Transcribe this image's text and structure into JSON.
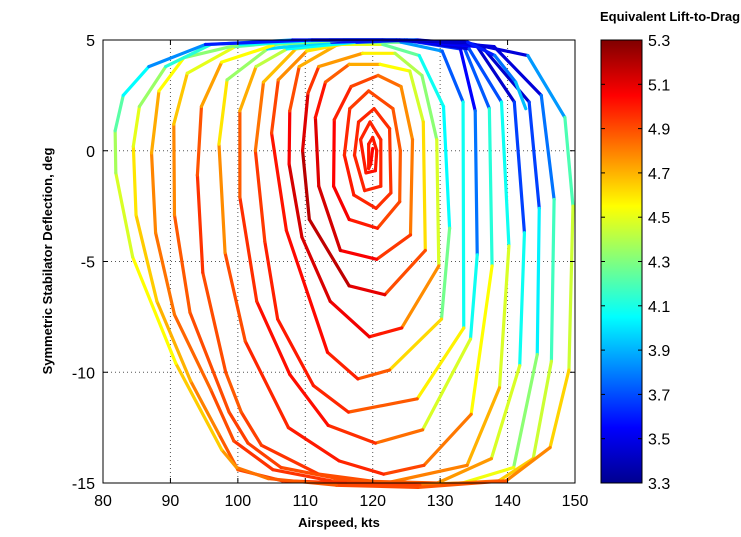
{
  "chart_data": {
    "type": "line",
    "xlabel": "Airspeed, kts",
    "ylabel": "Symmetric Stabilator Deflection, deg",
    "colorbar_title": "Equivalent Lift-to-Drag Ratio",
    "xlim": [
      80,
      150
    ],
    "ylim": [
      -15,
      5
    ],
    "xticks": [
      80,
      90,
      100,
      110,
      120,
      130,
      140,
      150
    ],
    "yticks": [
      -15,
      -10,
      -5,
      0,
      5
    ],
    "xtick_labels": [
      "80",
      "90",
      "100",
      "110",
      "120",
      "130",
      "140",
      "150"
    ],
    "ytick_labels": [
      "-15",
      "-10",
      "-5",
      "0",
      "5"
    ],
    "grid": true,
    "colormap": "jet",
    "colorbar_range": [
      3.3,
      5.3
    ],
    "colorbar_ticks": [
      "5.3",
      "5.1",
      "4.9",
      "4.7",
      "4.5",
      "4.3",
      "4.1",
      "3.9",
      "3.7",
      "3.5",
      "3.3"
    ],
    "series": [
      {
        "points": [
          [
            120.0,
            0.1
          ],
          [
            119.7,
            -0.6
          ],
          [
            119.4,
            -0.8
          ],
          [
            119.4,
            0.3
          ],
          [
            120.0,
            0.6
          ],
          [
            120.6,
            0.0
          ],
          [
            120.4,
            -0.9
          ],
          [
            119.0,
            -1.0
          ],
          [
            118.2,
            0.5
          ],
          [
            119.6,
            1.3
          ],
          [
            121.2,
            0.5
          ],
          [
            121.2,
            -1.6
          ],
          [
            118.8,
            -1.8
          ],
          [
            117.3,
            -0.2
          ],
          [
            117.9,
            1.3
          ],
          [
            120.2,
            1.9
          ],
          [
            122.5,
            1.0
          ],
          [
            122.7,
            -1.9
          ],
          [
            120.5,
            -2.6
          ],
          [
            117.2,
            -2.0
          ],
          [
            115.8,
            -0.2
          ],
          [
            116.6,
            1.9
          ],
          [
            119.4,
            2.7
          ],
          [
            123.0,
            1.9
          ],
          [
            124.1,
            0.0
          ],
          [
            124.0,
            -2.3
          ],
          [
            120.7,
            -3.5
          ],
          [
            116.5,
            -3.1
          ],
          [
            114.2,
            -1.6
          ],
          [
            114.3,
            1.4
          ],
          [
            116.8,
            2.9
          ],
          [
            120.8,
            3.4
          ],
          [
            124.2,
            2.9
          ],
          [
            125.9,
            0.5
          ],
          [
            125.6,
            -3.8
          ],
          [
            120.6,
            -4.9
          ],
          [
            115.2,
            -4.5
          ],
          [
            112.0,
            -1.6
          ],
          [
            111.5,
            1.5
          ],
          [
            113.0,
            3.1
          ],
          [
            116.5,
            3.9
          ],
          [
            121.1,
            3.9
          ],
          [
            125.5,
            3.6
          ],
          [
            127.5,
            1.3
          ],
          [
            127.8,
            -4.5
          ],
          [
            121.8,
            -6.5
          ],
          [
            116.5,
            -6.1
          ],
          [
            110.6,
            -3.1
          ],
          [
            109.6,
            0.0
          ],
          [
            110.4,
            2.6
          ],
          [
            112.0,
            3.8
          ],
          [
            118.5,
            4.4
          ],
          [
            123.3,
            4.4
          ],
          [
            127.3,
            3.4
          ],
          [
            129.5,
            0.5
          ],
          [
            129.8,
            -5.2
          ],
          [
            124.3,
            -8.0
          ],
          [
            119.5,
            -8.4
          ],
          [
            113.7,
            -6.8
          ],
          [
            109.5,
            -3.9
          ],
          [
            107.6,
            -0.6
          ],
          [
            107.7,
            1.8
          ],
          [
            109.1,
            3.8
          ],
          [
            114.8,
            4.8
          ],
          [
            121.5,
            4.8
          ],
          [
            126.9,
            4.3
          ],
          [
            130.5,
            2.0
          ],
          [
            131.4,
            -3.5
          ],
          [
            130.2,
            -7.6
          ],
          [
            122.5,
            -9.9
          ],
          [
            117.8,
            -10.3
          ],
          [
            113.3,
            -9.1
          ],
          [
            107.2,
            -3.6
          ],
          [
            105.0,
            0.8
          ],
          [
            106.0,
            3.2
          ],
          [
            110.2,
            4.5
          ],
          [
            117.1,
            4.9
          ],
          [
            124.2,
            4.9
          ],
          [
            130.3,
            4.5
          ],
          [
            133.4,
            2.2
          ],
          [
            133.5,
            -8.0
          ],
          [
            126.6,
            -11.2
          ],
          [
            116.4,
            -11.8
          ],
          [
            111.2,
            -10.6
          ],
          [
            105.9,
            -7.6
          ],
          [
            104.0,
            -4.1
          ],
          [
            102.6,
            0.0
          ],
          [
            103.8,
            3.1
          ],
          [
            108.6,
            4.6
          ],
          [
            117.6,
            4.9
          ],
          [
            124.7,
            5.0
          ],
          [
            133.0,
            4.6
          ],
          [
            135.2,
            1.8
          ],
          [
            135.5,
            -4.7
          ],
          [
            134.5,
            -8.5
          ],
          [
            127.4,
            -12.6
          ],
          [
            120.4,
            -13.2
          ],
          [
            113.4,
            -12.4
          ],
          [
            107.7,
            -10.1
          ],
          [
            102.8,
            -6.8
          ],
          [
            100.3,
            -2.1
          ],
          [
            100.3,
            1.8
          ],
          [
            102.7,
            3.8
          ],
          [
            107.3,
            4.6
          ],
          [
            117.6,
            4.9
          ],
          [
            126.5,
            5.0
          ],
          [
            133.5,
            4.7
          ],
          [
            137.3,
            1.9
          ],
          [
            137.7,
            -5.2
          ],
          [
            134.6,
            -11.9
          ],
          [
            127.6,
            -14.2
          ],
          [
            121.6,
            -14.6
          ],
          [
            115.0,
            -14.0
          ],
          [
            107.5,
            -12.5
          ],
          [
            101.1,
            -8.6
          ],
          [
            98.1,
            -4.6
          ],
          [
            97.2,
            0.3
          ],
          [
            98.4,
            3.2
          ],
          [
            104.4,
            4.6
          ],
          [
            113.9,
            4.9
          ],
          [
            125.1,
            5.0
          ],
          [
            134.3,
            4.6
          ],
          [
            139.1,
            2.2
          ],
          [
            140.2,
            -4.3
          ],
          [
            138.8,
            -10.7
          ],
          [
            134.0,
            -14.2
          ],
          [
            122.0,
            -15.0
          ],
          [
            112.0,
            -14.6
          ],
          [
            103.5,
            -13.3
          ],
          [
            100.5,
            -11.8
          ],
          [
            98.2,
            -10.0
          ],
          [
            94.8,
            -5.5
          ],
          [
            94.0,
            -1.1
          ],
          [
            94.6,
            2.0
          ],
          [
            97.6,
            4.0
          ],
          [
            105.6,
            4.8
          ],
          [
            115.7,
            5.0
          ],
          [
            126.3,
            5.0
          ],
          [
            135.5,
            4.7
          ],
          [
            141.0,
            2.2
          ],
          [
            142.5,
            -3.7
          ],
          [
            141.8,
            -9.7
          ],
          [
            137.6,
            -13.9
          ],
          [
            129.6,
            -15.0
          ],
          [
            116.5,
            -14.9
          ],
          [
            106.4,
            -14.3
          ],
          [
            101.5,
            -13.2
          ],
          [
            98.7,
            -11.8
          ],
          [
            92.9,
            -7.3
          ],
          [
            90.6,
            -2.9
          ],
          [
            90.5,
            1.2
          ],
          [
            92.5,
            3.5
          ],
          [
            99.6,
            4.7
          ],
          [
            110.5,
            5.0
          ],
          [
            123.5,
            5.0
          ],
          [
            136.2,
            4.7
          ],
          [
            143.2,
            2.2
          ],
          [
            144.7,
            -2.6
          ],
          [
            144.4,
            -9.2
          ],
          [
            140.9,
            -14.3
          ],
          [
            133.3,
            -15.0
          ],
          [
            122.8,
            -15.1
          ],
          [
            113.8,
            -14.9
          ],
          [
            105.2,
            -14.4
          ],
          [
            99.4,
            -13.1
          ],
          [
            96.0,
            -10.8
          ],
          [
            90.6,
            -7.4
          ],
          [
            87.8,
            -3.7
          ],
          [
            87.2,
            -0.1
          ],
          [
            88.3,
            2.7
          ],
          [
            92.0,
            4.2
          ],
          [
            100.3,
            4.8
          ],
          [
            113.6,
            5.0
          ],
          [
            126.7,
            5.0
          ],
          [
            138.0,
            4.7
          ],
          [
            145.0,
            2.5
          ],
          [
            146.9,
            -2.2
          ],
          [
            146.5,
            -9.5
          ],
          [
            143.8,
            -13.9
          ],
          [
            138.7,
            -14.9
          ],
          [
            127.0,
            -15.1
          ],
          [
            116.0,
            -15.0
          ],
          [
            106.6,
            -14.9
          ],
          [
            100.0,
            -14.4
          ],
          [
            97.2,
            -12.8
          ],
          [
            93.0,
            -10.4
          ],
          [
            88.0,
            -6.8
          ],
          [
            84.9,
            -2.9
          ],
          [
            84.5,
            0.2
          ],
          [
            85.4,
            2.0
          ],
          [
            89.3,
            3.8
          ],
          [
            96.0,
            4.8
          ],
          [
            108.1,
            5.0
          ],
          [
            121.4,
            5.0
          ],
          [
            133.5,
            4.9
          ],
          [
            143.0,
            4.3
          ],
          [
            148.5,
            1.5
          ],
          [
            149.7,
            -2.5
          ],
          [
            149.1,
            -9.9
          ],
          [
            146.3,
            -13.4
          ],
          [
            139.8,
            -14.9
          ],
          [
            126.7,
            -15.2
          ],
          [
            114.6,
            -15.1
          ],
          [
            104.5,
            -14.8
          ],
          [
            99.8,
            -14.3
          ],
          [
            97.6,
            -13.5
          ],
          [
            90.8,
            -9.6
          ],
          [
            84.4,
            -4.8
          ],
          [
            81.9,
            -1.0
          ],
          [
            81.8,
            0.9
          ],
          [
            83.0,
            2.5
          ],
          [
            86.8,
            3.8
          ],
          [
            95.2,
            4.8
          ],
          [
            111.0,
            5.0
          ],
          [
            124.0,
            5.0
          ],
          [
            134.1,
            4.9
          ],
          [
            138.1,
            4.3
          ],
          [
            141.2,
            3.1
          ],
          [
            142.7,
            1.9
          ]
        ],
        "ld": [
          5.05,
          5.05,
          5.0,
          5.0,
          5.0,
          5.0,
          5.02,
          5.02,
          4.98,
          4.98,
          4.98,
          4.98,
          4.98,
          4.98,
          4.98,
          4.98,
          4.95,
          4.95,
          4.96,
          5.0,
          5.0,
          4.95,
          4.92,
          4.9,
          4.86,
          4.88,
          4.95,
          5.05,
          5.08,
          5.02,
          4.95,
          4.88,
          4.8,
          4.75,
          4.88,
          5.0,
          5.12,
          5.15,
          5.08,
          4.95,
          4.78,
          4.65,
          4.45,
          4.48,
          4.75,
          5.05,
          5.15,
          5.2,
          5.18,
          5.05,
          4.85,
          4.65,
          4.5,
          4.3,
          4.35,
          4.6,
          4.95,
          5.05,
          5.1,
          5.15,
          5.12,
          5.0,
          4.8,
          4.62,
          4.35,
          4.15,
          4.0,
          4.1,
          4.45,
          4.8,
          4.95,
          5.02,
          5.05,
          4.98,
          4.85,
          4.7,
          4.5,
          4.05,
          3.65,
          3.8,
          4.35,
          4.8,
          4.95,
          5.0,
          5.0,
          4.98,
          4.9,
          4.75,
          4.6,
          4.3,
          3.8,
          3.5,
          3.6,
          3.95,
          4.2,
          4.75,
          4.92,
          5.0,
          5.05,
          5.0,
          4.92,
          4.82,
          4.6,
          4.25,
          3.85,
          3.45,
          3.55,
          3.9,
          4.35,
          4.75,
          4.88,
          4.95,
          5.0,
          5.0,
          4.95,
          4.85,
          4.7,
          4.5,
          4.2,
          3.75,
          3.4,
          3.55,
          3.85,
          4.3,
          4.65,
          4.75,
          4.85,
          4.95,
          4.95,
          4.9,
          4.85,
          4.95,
          4.95,
          4.82,
          4.65,
          4.45,
          4.15,
          3.75,
          3.4,
          3.5,
          3.85,
          4.3,
          4.65,
          4.85,
          4.9,
          4.9,
          4.95,
          4.9,
          4.9,
          4.85,
          4.72,
          4.6,
          4.4,
          4.05,
          3.7,
          3.4,
          3.5,
          3.85,
          4.2,
          4.45,
          4.6,
          4.85,
          4.95,
          4.95,
          4.95,
          4.85,
          4.85,
          4.8,
          4.78,
          4.65,
          4.45,
          4.2,
          3.9,
          3.6,
          3.4,
          3.55,
          4.0,
          4.35,
          4.55,
          4.75,
          4.9,
          4.95,
          4.95,
          4.9,
          4.85,
          4.75,
          4.65,
          4.65,
          4.55,
          4.45,
          4.25,
          4.0,
          3.7,
          3.45,
          3.3,
          3.65,
          4.05,
          4.35,
          4.55,
          4.72,
          4.85,
          4.92,
          4.9,
          4.85,
          4.8,
          4.7,
          4.6,
          4.5,
          4.45,
          4.3,
          4.15,
          3.95,
          3.7,
          3.5,
          3.4,
          3.5,
          3.7,
          3.85,
          4.0
        ]
      }
    ]
  }
}
